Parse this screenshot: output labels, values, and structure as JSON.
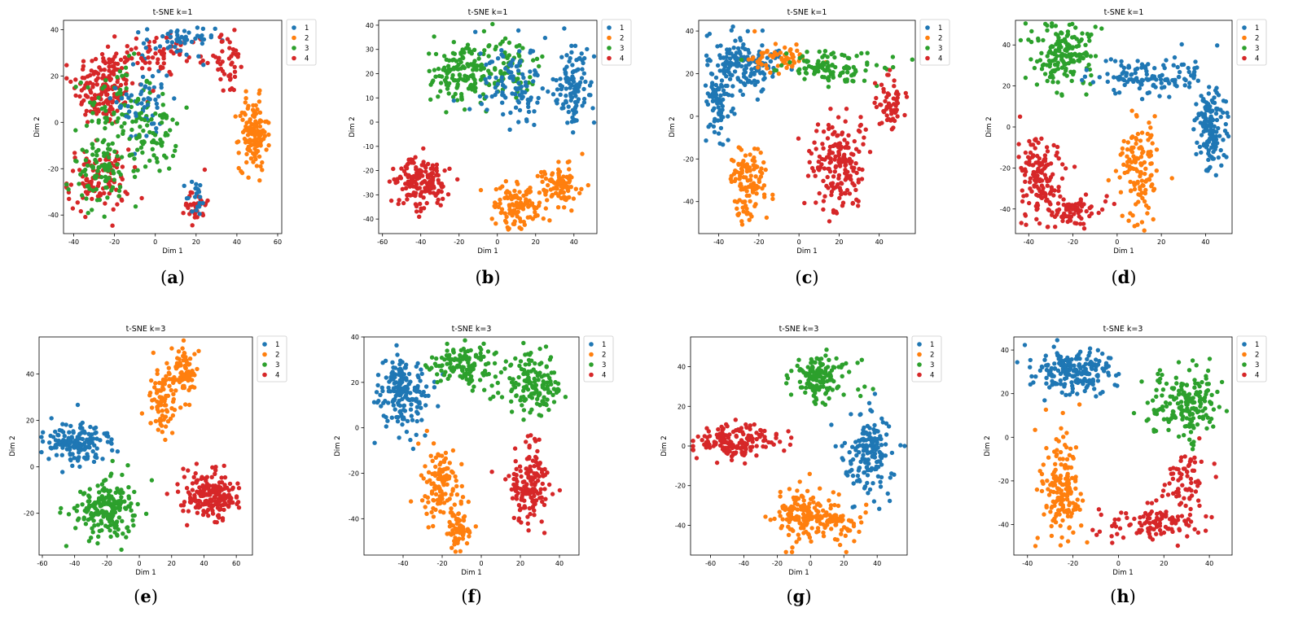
{
  "colors": {
    "1": "#1f77b4",
    "2": "#ff7f0e",
    "3": "#2ca02c",
    "4": "#d62728"
  },
  "chart_data": [
    {
      "type": "scatter",
      "panel_label": "(a)",
      "title": "t-SNE k=1",
      "xlabel": "Dim 1",
      "ylabel": "Dim 2",
      "xlim": [
        -45,
        62
      ],
      "ylim": [
        -48,
        44
      ],
      "xticks": [
        -40,
        -20,
        0,
        20,
        40,
        60
      ],
      "yticks": [
        -40,
        -20,
        0,
        20,
        40
      ],
      "legend": [
        "1",
        "2",
        "3",
        "4"
      ],
      "legend_placement": "outside-right-top",
      "clusters": [
        {
          "label": "4",
          "cx": -25,
          "cy": 15,
          "sx": 9,
          "sy": 10,
          "n": 170
        },
        {
          "label": "3",
          "cx": -18,
          "cy": 5,
          "sx": 10,
          "sy": 12,
          "n": 90
        },
        {
          "label": "1",
          "cx": -5,
          "cy": 10,
          "sx": 8,
          "sy": 12,
          "n": 60
        },
        {
          "label": "4",
          "cx": -28,
          "cy": -25,
          "sx": 9,
          "sy": 8,
          "n": 110
        },
        {
          "label": "3",
          "cx": -25,
          "cy": -22,
          "sx": 10,
          "sy": 8,
          "n": 90
        },
        {
          "label": "3",
          "cx": 0,
          "cy": -5,
          "sx": 6,
          "sy": 10,
          "n": 60
        },
        {
          "label": "4",
          "cx": 5,
          "cy": 30,
          "sx": 14,
          "sy": 5,
          "n": 70
        },
        {
          "label": "1",
          "cx": 12,
          "cy": 35,
          "sx": 10,
          "sy": 4,
          "n": 50
        },
        {
          "label": "4",
          "cx": 35,
          "cy": 25,
          "sx": 6,
          "sy": 8,
          "n": 40
        },
        {
          "label": "2",
          "cx": 48,
          "cy": -5,
          "sx": 4,
          "sy": 9,
          "n": 140
        },
        {
          "label": "4",
          "cx": 20,
          "cy": -35,
          "sx": 3,
          "sy": 5,
          "n": 35
        },
        {
          "label": "1",
          "cx": 20,
          "cy": -33,
          "sx": 3,
          "sy": 5,
          "n": 20
        }
      ]
    },
    {
      "type": "scatter",
      "panel_label": "(b)",
      "title": "t-SNE k=1",
      "xlabel": "Dim 1",
      "ylabel": "Dim 2",
      "xlim": [
        -62,
        52
      ],
      "ylim": [
        -46,
        42
      ],
      "xticks": [
        -60,
        -40,
        -20,
        0,
        20,
        40
      ],
      "yticks": [
        -40,
        -30,
        -20,
        -10,
        0,
        10,
        20,
        30,
        40
      ],
      "legend": [
        "1",
        "2",
        "3",
        "4"
      ],
      "legend_placement": "outside-right-top",
      "clusters": [
        {
          "label": "3",
          "cx": -20,
          "cy": 20,
          "sx": 10,
          "sy": 8,
          "n": 140
        },
        {
          "label": "3",
          "cx": 5,
          "cy": 22,
          "sx": 10,
          "sy": 8,
          "n": 80
        },
        {
          "label": "1",
          "cx": 10,
          "cy": 15,
          "sx": 12,
          "sy": 10,
          "n": 110
        },
        {
          "label": "1",
          "cx": 40,
          "cy": 15,
          "sx": 5,
          "sy": 10,
          "n": 110
        },
        {
          "label": "4",
          "cx": -40,
          "cy": -25,
          "sx": 9,
          "sy": 6,
          "n": 160
        },
        {
          "label": "2",
          "cx": 10,
          "cy": -35,
          "sx": 8,
          "sy": 6,
          "n": 110
        },
        {
          "label": "2",
          "cx": 33,
          "cy": -26,
          "sx": 7,
          "sy": 5,
          "n": 90
        }
      ]
    },
    {
      "type": "scatter",
      "panel_label": "(c)",
      "title": "t-SNE k=1",
      "xlabel": "Dim 1",
      "ylabel": "Dim 2",
      "xlim": [
        -50,
        58
      ],
      "ylim": [
        -55,
        45
      ],
      "xticks": [
        -40,
        -20,
        0,
        20,
        40
      ],
      "yticks": [
        -40,
        -20,
        0,
        20,
        40
      ],
      "legend": [
        "1",
        "2",
        "3",
        "4"
      ],
      "legend_placement": "outside-right-top",
      "clusters": [
        {
          "label": "1",
          "cx": -28,
          "cy": 25,
          "sx": 10,
          "sy": 7,
          "n": 150
        },
        {
          "label": "1",
          "cx": -40,
          "cy": 5,
          "sx": 4,
          "sy": 12,
          "n": 80
        },
        {
          "label": "2",
          "cx": -10,
          "cy": 28,
          "sx": 10,
          "sy": 5,
          "n": 60
        },
        {
          "label": "3",
          "cx": 15,
          "cy": 22,
          "sx": 15,
          "sy": 5,
          "n": 110
        },
        {
          "label": "2",
          "cx": -25,
          "cy": -30,
          "sx": 5,
          "sy": 10,
          "n": 120
        },
        {
          "label": "4",
          "cx": 20,
          "cy": -25,
          "sx": 8,
          "sy": 13,
          "n": 180
        },
        {
          "label": "4",
          "cx": 45,
          "cy": 5,
          "sx": 4,
          "sy": 8,
          "n": 60
        }
      ]
    },
    {
      "type": "scatter",
      "panel_label": "(d)",
      "title": "t-SNE k=1",
      "xlabel": "Dim 1",
      "ylabel": "Dim 2",
      "xlim": [
        -46,
        52
      ],
      "ylim": [
        -52,
        52
      ],
      "xticks": [
        -40,
        -20,
        0,
        20,
        40
      ],
      "yticks": [
        -40,
        -20,
        0,
        20,
        40
      ],
      "legend": [
        "1",
        "2",
        "3",
        "4"
      ],
      "legend_placement": "outside-right-top",
      "clusters": [
        {
          "label": "3",
          "cx": -25,
          "cy": 35,
          "sx": 8,
          "sy": 10,
          "n": 170
        },
        {
          "label": "1",
          "cx": 15,
          "cy": 25,
          "sx": 14,
          "sy": 6,
          "n": 120
        },
        {
          "label": "1",
          "cx": 42,
          "cy": 0,
          "sx": 4,
          "sy": 12,
          "n": 140
        },
        {
          "label": "4",
          "cx": -35,
          "cy": -25,
          "sx": 6,
          "sy": 12,
          "n": 140
        },
        {
          "label": "4",
          "cx": -20,
          "cy": -40,
          "sx": 8,
          "sy": 4,
          "n": 70
        },
        {
          "label": "2",
          "cx": 10,
          "cy": -20,
          "sx": 5,
          "sy": 15,
          "n": 130
        }
      ]
    },
    {
      "type": "scatter",
      "panel_label": "(e)",
      "title": "t-SNE k=3",
      "xlabel": "Dim 1",
      "ylabel": "Dim 2",
      "xlim": [
        -62,
        70
      ],
      "ylim": [
        -38,
        56
      ],
      "xticks": [
        -60,
        -40,
        -20,
        0,
        20,
        40,
        60
      ],
      "yticks": [
        -20,
        0,
        20,
        40
      ],
      "legend": [
        "1",
        "2",
        "3",
        "4"
      ],
      "legend_placement": "outside-right-top",
      "clusters": [
        {
          "label": "1",
          "cx": -40,
          "cy": 10,
          "sx": 12,
          "sy": 5,
          "n": 160
        },
        {
          "label": "3",
          "cx": -20,
          "cy": -18,
          "sx": 12,
          "sy": 7,
          "n": 200
        },
        {
          "label": "2",
          "cx": 15,
          "cy": 30,
          "sx": 5,
          "sy": 10,
          "n": 80
        },
        {
          "label": "2",
          "cx": 28,
          "cy": 40,
          "sx": 5,
          "sy": 6,
          "n": 80
        },
        {
          "label": "4",
          "cx": 45,
          "cy": -12,
          "sx": 10,
          "sy": 6,
          "n": 200
        }
      ]
    },
    {
      "type": "scatter",
      "panel_label": "(f)",
      "title": "t-SNE k=3",
      "xlabel": "Dim 1",
      "ylabel": "Dim 2",
      "xlim": [
        -60,
        50
      ],
      "ylim": [
        -56,
        40
      ],
      "xticks": [
        -40,
        -20,
        0,
        20,
        40
      ],
      "yticks": [
        -40,
        -20,
        0,
        20,
        40
      ],
      "legend": [
        "1",
        "2",
        "3",
        "4"
      ],
      "legend_placement": "outside-right-top",
      "clusters": [
        {
          "label": "1",
          "cx": -40,
          "cy": 15,
          "sx": 8,
          "sy": 10,
          "n": 170
        },
        {
          "label": "3",
          "cx": -10,
          "cy": 28,
          "sx": 10,
          "sy": 5,
          "n": 120
        },
        {
          "label": "3",
          "cx": 25,
          "cy": 20,
          "sx": 10,
          "sy": 8,
          "n": 150
        },
        {
          "label": "2",
          "cx": -20,
          "cy": -25,
          "sx": 6,
          "sy": 10,
          "n": 120
        },
        {
          "label": "2",
          "cx": -12,
          "cy": -45,
          "sx": 4,
          "sy": 5,
          "n": 60
        },
        {
          "label": "4",
          "cx": 25,
          "cy": -25,
          "sx": 6,
          "sy": 10,
          "n": 160
        }
      ]
    },
    {
      "type": "scatter",
      "panel_label": "(g)",
      "title": "t-SNE k=3",
      "xlabel": "Dim 1",
      "ylabel": "Dim 2",
      "xlim": [
        -72,
        58
      ],
      "ylim": [
        -55,
        55
      ],
      "xticks": [
        -60,
        -40,
        -20,
        0,
        20,
        40
      ],
      "yticks": [
        -40,
        -20,
        0,
        20,
        40
      ],
      "legend": [
        "1",
        "2",
        "3",
        "4"
      ],
      "legend_placement": "outside-right-top",
      "clusters": [
        {
          "label": "4",
          "cx": -45,
          "cy": 2,
          "sx": 15,
          "sy": 5,
          "n": 170
        },
        {
          "label": "3",
          "cx": 5,
          "cy": 35,
          "sx": 10,
          "sy": 7,
          "n": 140
        },
        {
          "label": "1",
          "cx": 35,
          "cy": -5,
          "sx": 8,
          "sy": 12,
          "n": 160
        },
        {
          "label": "2",
          "cx": -5,
          "cy": -35,
          "sx": 10,
          "sy": 8,
          "n": 150
        },
        {
          "label": "2",
          "cx": 15,
          "cy": -38,
          "sx": 8,
          "sy": 6,
          "n": 60
        }
      ]
    },
    {
      "type": "scatter",
      "panel_label": "(h)",
      "title": "t-SNE k=3",
      "xlabel": "Dim 1",
      "ylabel": "Dim 2",
      "xlim": [
        -46,
        50
      ],
      "ylim": [
        -54,
        46
      ],
      "xticks": [
        -40,
        -20,
        0,
        20,
        40
      ],
      "yticks": [
        -40,
        -20,
        0,
        20,
        40
      ],
      "legend": [
        "1",
        "2",
        "3",
        "4"
      ],
      "legend_placement": "outside-right-top",
      "clusters": [
        {
          "label": "1",
          "cx": -20,
          "cy": 30,
          "sx": 10,
          "sy": 6,
          "n": 190
        },
        {
          "label": "3",
          "cx": 30,
          "cy": 15,
          "sx": 10,
          "sy": 10,
          "n": 180
        },
        {
          "label": "2",
          "cx": -25,
          "cy": -25,
          "sx": 5,
          "sy": 14,
          "n": 170
        },
        {
          "label": "4",
          "cx": 15,
          "cy": -40,
          "sx": 12,
          "sy": 5,
          "n": 110
        },
        {
          "label": "4",
          "cx": 30,
          "cy": -20,
          "sx": 5,
          "sy": 10,
          "n": 70
        }
      ]
    }
  ]
}
